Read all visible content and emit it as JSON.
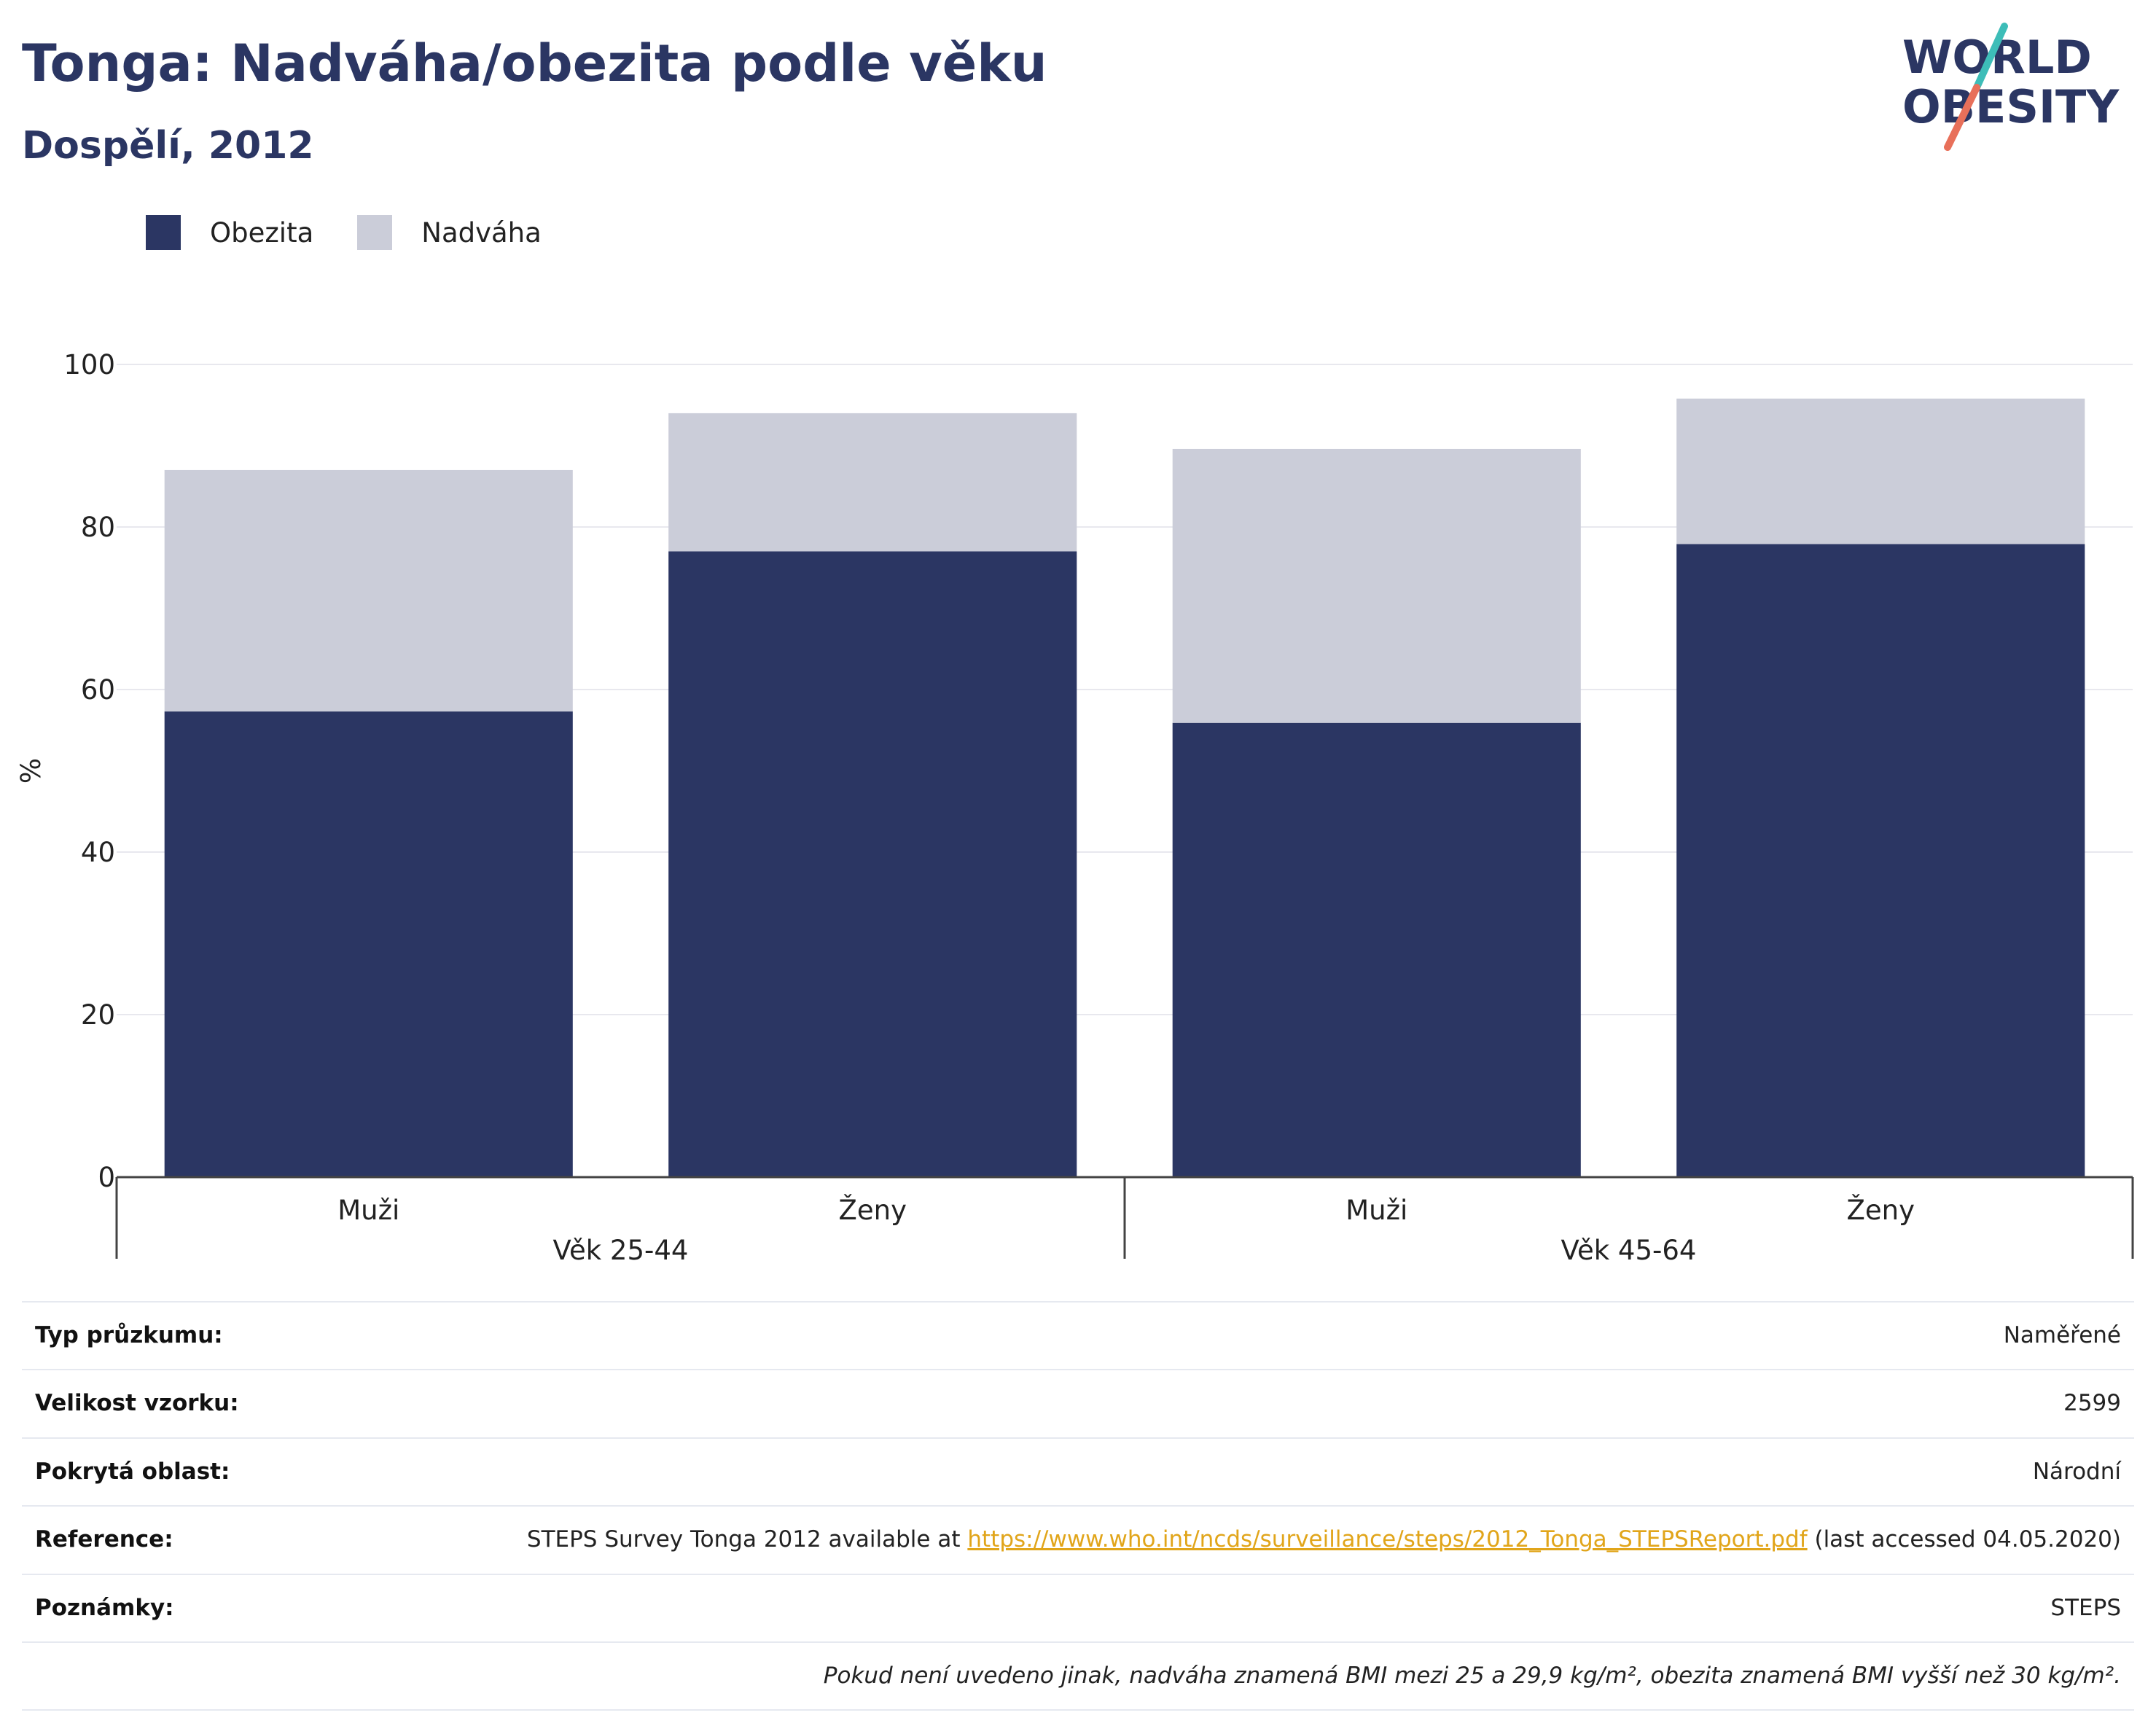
{
  "header": {
    "title": "Tonga: Nadváha/obezita podle věku",
    "subtitle": "Dospělí, 2012"
  },
  "logo": {
    "line1": "WORLD",
    "line2": "OBESITY"
  },
  "colors": {
    "obezita": "#2b3663",
    "nadvaha": "#cbcdd9",
    "title": "#2b3663",
    "link": "#e1a51a",
    "logo_teal": "#3dbdb8",
    "logo_red": "#e8705a"
  },
  "chart_data": {
    "type": "bar",
    "stacked": true,
    "ylabel": "%",
    "ylim": [
      0,
      100
    ],
    "yticks": [
      0,
      20,
      40,
      60,
      80,
      100
    ],
    "grid": true,
    "legend_position": "top-left",
    "categories": [
      "Muži",
      "Ženy",
      "Muži",
      "Ženy"
    ],
    "groups": [
      {
        "label": "Věk 25-44",
        "categories": [
          "Muži",
          "Ženy"
        ]
      },
      {
        "label": "Věk 45-64",
        "categories": [
          "Muži",
          "Ženy"
        ]
      }
    ],
    "series": [
      {
        "name": "Obezita",
        "values": [
          57.3,
          77.0,
          55.9,
          77.9
        ]
      },
      {
        "name": "Nadváha",
        "values": [
          29.7,
          17.0,
          33.7,
          17.9
        ]
      }
    ]
  },
  "info": {
    "rows": [
      {
        "label": "Typ průzkumu:",
        "value": "Naměřené"
      },
      {
        "label": "Velikost vzorku:",
        "value": "2599"
      },
      {
        "label": "Pokrytá oblast:",
        "value": "Národní"
      }
    ],
    "reference": {
      "label": "Reference:",
      "text_before": "STEPS Survey Tonga 2012 available at ",
      "link": "https://www.who.int/ncds/surveillance/steps/2012_Tonga_STEPSReport.pdf",
      "text_after": " (last accessed 04.05.2020)"
    },
    "notes": {
      "label": "Poznámky:",
      "value": "STEPS"
    },
    "footnote": "Pokud není uvedeno jinak, nadváha znamená BMI mezi 25 a 29,9 kg/m², obezita znamená BMI vyšší než 30 kg/m²."
  }
}
